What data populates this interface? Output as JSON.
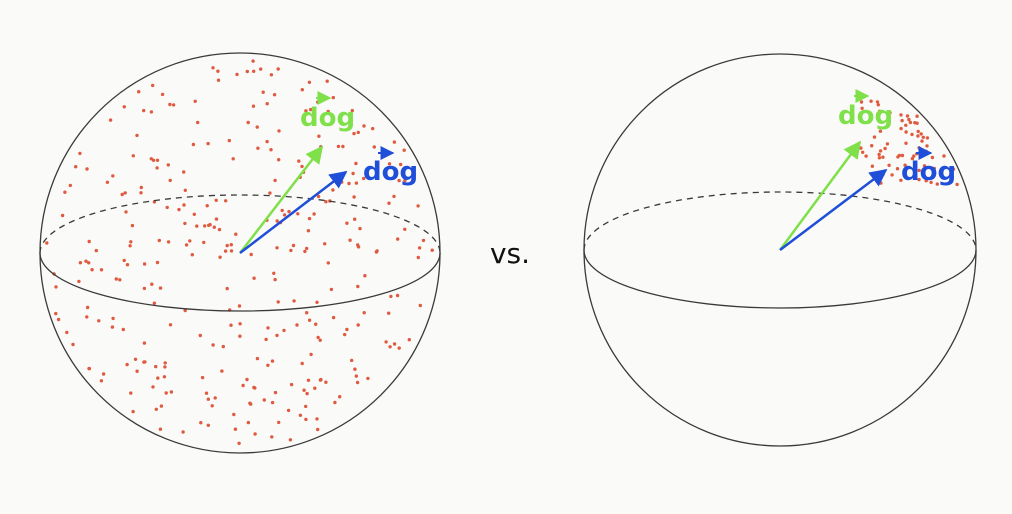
{
  "colors": {
    "background": "#fafaf8",
    "outline": "#3a3a3a",
    "points": "#e05a40",
    "green_vector": "#7fe04a",
    "blue_vector": "#1f4ed8"
  },
  "labels": {
    "green_vector": "dog",
    "blue_vector": "dog",
    "separator": "vs."
  },
  "spheres": [
    {
      "name": "left-sphere",
      "point_distribution": "uniform over entire sphere"
    },
    {
      "name": "right-sphere",
      "point_distribution": "clustered near the two vectors"
    }
  ]
}
